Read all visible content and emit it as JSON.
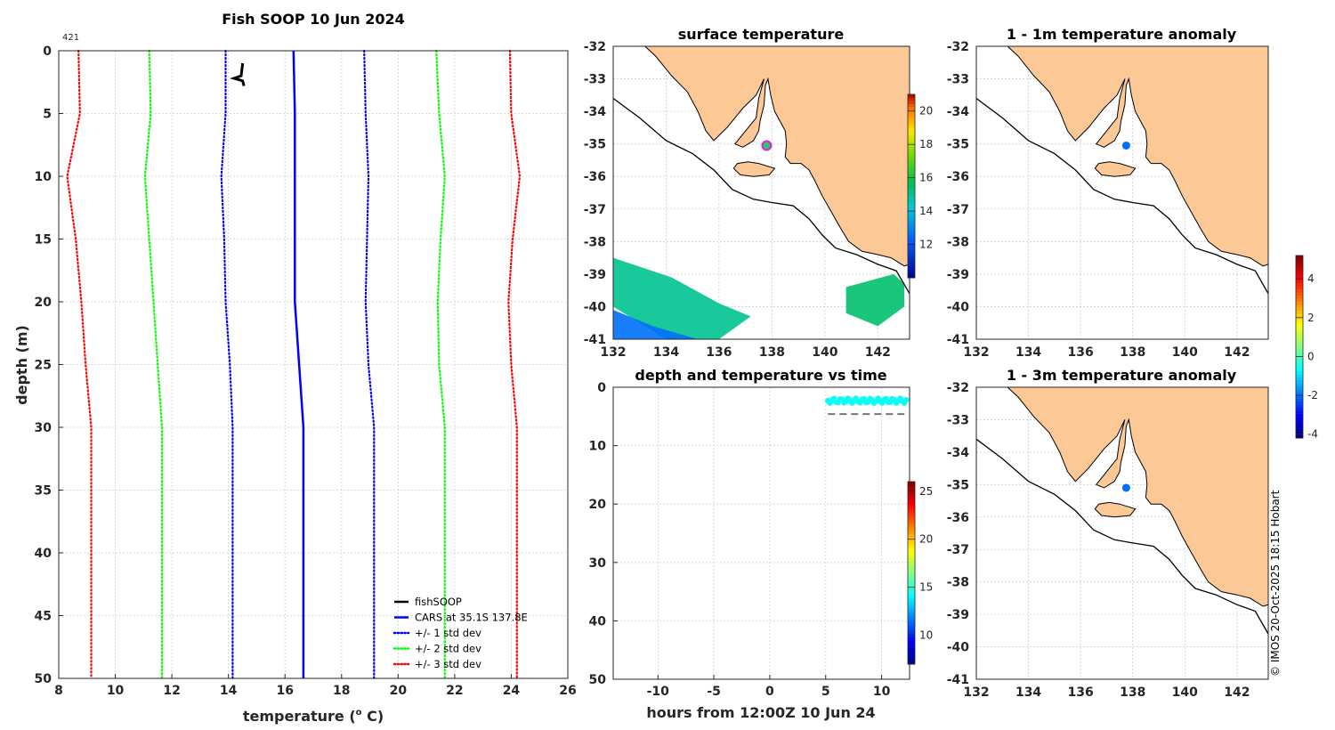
{
  "figure_title": "Fish SOOP 10 Jun 2024",
  "copyright": "© IMOS 20-Oct-2025 18:15 Hobart",
  "chart_data": [
    {
      "id": "profile",
      "type": "line",
      "title": "Fish SOOP 10 Jun 2024",
      "xlabel": "temperature (° C)",
      "xlabel_main": "temperature (",
      "xlabel_sup": "o",
      "xlabel_end": " C)",
      "ylabel": "depth (m)",
      "xlim": [
        8,
        26
      ],
      "ylim": [
        50,
        0
      ],
      "xticks": [
        8,
        10,
        12,
        14,
        16,
        18,
        20,
        22,
        24,
        26
      ],
      "yticks": [
        0,
        5,
        10,
        15,
        20,
        25,
        30,
        35,
        40,
        45,
        50
      ],
      "annotation": "421",
      "grid": true,
      "legend_position": "bottom-right",
      "series": [
        {
          "name": "fishSOOP",
          "style": "solid",
          "color": "#000000",
          "points": [
            [
              14.5,
              1.0
            ],
            [
              14.45,
              2.0
            ],
            [
              14.2,
              2.2
            ],
            [
              14.5,
              2.4
            ],
            [
              14.55,
              2.8
            ]
          ]
        },
        {
          "name": "CARS at 35.1S 137.8E",
          "style": "solid",
          "color": "#0000ff",
          "points": [
            [
              16.3,
              0
            ],
            [
              16.35,
              5
            ],
            [
              16.35,
              10
            ],
            [
              16.35,
              15
            ],
            [
              16.35,
              20
            ],
            [
              16.5,
              25
            ],
            [
              16.65,
              30
            ],
            [
              16.65,
              35
            ],
            [
              16.65,
              40
            ],
            [
              16.65,
              45
            ],
            [
              16.65,
              50
            ]
          ]
        },
        {
          "name": "+/- 1 std dev",
          "style": "dotted",
          "color": "#0000ff",
          "points": [
            [
              13.9,
              0
            ],
            [
              13.9,
              5
            ],
            [
              13.75,
              10
            ],
            [
              13.85,
              15
            ],
            [
              13.9,
              20
            ],
            [
              14.05,
              25
            ],
            [
              14.15,
              30
            ],
            [
              14.15,
              35
            ],
            [
              14.15,
              40
            ],
            [
              14.15,
              45
            ],
            [
              14.15,
              50
            ]
          ]
        },
        {
          "name": "+/- 1 std dev upper",
          "legend": false,
          "style": "dotted",
          "color": "#0000ff",
          "points": [
            [
              18.8,
              0
            ],
            [
              18.85,
              5
            ],
            [
              18.95,
              10
            ],
            [
              18.9,
              15
            ],
            [
              18.85,
              20
            ],
            [
              18.95,
              25
            ],
            [
              19.15,
              30
            ],
            [
              19.15,
              35
            ],
            [
              19.15,
              40
            ],
            [
              19.15,
              45
            ],
            [
              19.15,
              50
            ]
          ]
        },
        {
          "name": "+/- 2 std dev",
          "style": "dotted",
          "color": "#00ff00",
          "points": [
            [
              11.2,
              0
            ],
            [
              11.25,
              5
            ],
            [
              11.05,
              10
            ],
            [
              11.2,
              15
            ],
            [
              11.35,
              20
            ],
            [
              11.5,
              25
            ],
            [
              11.65,
              30
            ],
            [
              11.65,
              35
            ],
            [
              11.65,
              40
            ],
            [
              11.65,
              45
            ],
            [
              11.65,
              50
            ]
          ]
        },
        {
          "name": "+/- 2 std dev upper",
          "legend": false,
          "style": "dotted",
          "color": "#00ff00",
          "points": [
            [
              21.35,
              0
            ],
            [
              21.45,
              5
            ],
            [
              21.65,
              10
            ],
            [
              21.5,
              15
            ],
            [
              21.4,
              20
            ],
            [
              21.45,
              25
            ],
            [
              21.65,
              30
            ],
            [
              21.65,
              35
            ],
            [
              21.65,
              40
            ],
            [
              21.65,
              45
            ],
            [
              21.65,
              50
            ]
          ]
        },
        {
          "name": "+/- 3 std dev",
          "style": "dotted",
          "color": "#ff0000",
          "points": [
            [
              8.7,
              0
            ],
            [
              8.75,
              5
            ],
            [
              8.3,
              10
            ],
            [
              8.6,
              15
            ],
            [
              8.8,
              20
            ],
            [
              8.95,
              25
            ],
            [
              9.15,
              30
            ],
            [
              9.15,
              35
            ],
            [
              9.15,
              40
            ],
            [
              9.15,
              45
            ],
            [
              9.15,
              50
            ]
          ]
        },
        {
          "name": "+/- 3 std dev upper",
          "legend": false,
          "style": "dotted",
          "color": "#ff0000",
          "points": [
            [
              23.95,
              0
            ],
            [
              24.0,
              5
            ],
            [
              24.3,
              10
            ],
            [
              24.05,
              15
            ],
            [
              23.9,
              20
            ],
            [
              24.0,
              25
            ],
            [
              24.2,
              30
            ],
            [
              24.2,
              35
            ],
            [
              24.2,
              40
            ],
            [
              24.2,
              45
            ],
            [
              24.2,
              50
            ]
          ]
        }
      ]
    },
    {
      "id": "surface",
      "type": "heatmap",
      "title": "surface temperature",
      "xlim": [
        132,
        143.2
      ],
      "ylim": [
        -41,
        -32
      ],
      "xticks": [
        132,
        134,
        136,
        138,
        140,
        142
      ],
      "yticks": [
        -32,
        -33,
        -34,
        -35,
        -36,
        -37,
        -38,
        -39,
        -40,
        -41
      ],
      "station": {
        "lon": 137.8,
        "lat": -35.05,
        "color": "#e020e0"
      },
      "colorbar": {
        "min": 10,
        "max": 21,
        "ticks": [
          12,
          14,
          16,
          18,
          20
        ]
      },
      "sst_regions": [
        {
          "lon": [
            132,
            134.2,
            136.0,
            137.2,
            136.0,
            134.0,
            132.0
          ],
          "lat": [
            -38.5,
            -39.1,
            -39.9,
            -40.3,
            -41.0,
            -41.0,
            -40.0
          ],
          "temp": 15.0
        },
        {
          "lon": [
            132,
            133.5,
            135.2,
            134.0,
            132.0
          ],
          "lat": [
            -40.1,
            -40.6,
            -41.0,
            -41.0,
            -41.0
          ],
          "temp": 12.6
        },
        {
          "lon": [
            140.8,
            142.6,
            143.0,
            143.0,
            142.0,
            140.8
          ],
          "lat": [
            -39.4,
            -39.0,
            -39.3,
            -40.0,
            -40.6,
            -40.2
          ],
          "temp": 15.4
        }
      ]
    },
    {
      "id": "timeseries",
      "type": "scatter",
      "title": "depth and temperature vs time",
      "xlabel": "hours from 12:00Z 10 Jun 24",
      "xlim": [
        -14,
        12.5
      ],
      "ylim": [
        50,
        0
      ],
      "xticks": [
        -10,
        -5,
        0,
        5,
        10
      ],
      "yticks": [
        0,
        10,
        20,
        30,
        40,
        50
      ],
      "reference_depth": 4.6,
      "colorbar": {
        "min": 7,
        "max": 26,
        "ticks": [
          10,
          15,
          20,
          25
        ]
      },
      "observations": {
        "hours_start": 5.2,
        "hours_end": 12.2,
        "depth_min": 1.9,
        "depth_max": 2.7,
        "temperature": 14.3
      }
    },
    {
      "id": "anom1",
      "type": "scatter",
      "title": "1 - 1m temperature anomaly",
      "xlim": [
        132,
        143.2
      ],
      "ylim": [
        -41,
        -32
      ],
      "xticks": [
        132,
        134,
        136,
        138,
        140,
        142
      ],
      "yticks": [
        -32,
        -33,
        -34,
        -35,
        -36,
        -37,
        -38,
        -39,
        -40,
        -41
      ],
      "point": {
        "lon": 137.75,
        "lat": -35.05,
        "anomaly": -2.0
      }
    },
    {
      "id": "anom3",
      "type": "scatter",
      "title": "1 - 3m temperature anomaly",
      "xlim": [
        132,
        143.2
      ],
      "ylim": [
        -41,
        -32
      ],
      "xticks": [
        132,
        134,
        136,
        138,
        140,
        142
      ],
      "yticks": [
        -32,
        -33,
        -34,
        -35,
        -36,
        -37,
        -38,
        -39,
        -40,
        -41
      ],
      "point": {
        "lon": 137.75,
        "lat": -35.1,
        "anomaly": -2.0
      },
      "colorbar": {
        "min": -4.2,
        "max": 5.2,
        "ticks": [
          -4,
          -2,
          0,
          2,
          4
        ]
      }
    }
  ],
  "map_geometry": {
    "land_color": "#fbc896",
    "coast": [
      [
        132.0,
        -32.0
      ],
      [
        143.2,
        -32.0
      ],
      [
        143.2,
        -38.7
      ],
      [
        143.0,
        -38.75
      ],
      [
        142.5,
        -38.5
      ],
      [
        142.0,
        -38.4
      ],
      [
        141.4,
        -38.3
      ],
      [
        140.9,
        -38.0
      ],
      [
        140.6,
        -37.6
      ],
      [
        140.25,
        -37.1
      ],
      [
        139.9,
        -36.6
      ],
      [
        139.6,
        -36.1
      ],
      [
        139.4,
        -35.8
      ],
      [
        139.1,
        -35.6
      ],
      [
        138.7,
        -35.6
      ],
      [
        138.5,
        -35.4
      ],
      [
        138.55,
        -35.0
      ],
      [
        138.5,
        -34.6
      ],
      [
        138.1,
        -34.0
      ],
      [
        137.95,
        -33.5
      ],
      [
        137.85,
        -33.0
      ],
      [
        137.75,
        -33.2
      ],
      [
        137.7,
        -33.8
      ],
      [
        137.55,
        -34.3
      ],
      [
        137.5,
        -34.6
      ],
      [
        137.3,
        -34.9
      ],
      [
        136.9,
        -35.1
      ],
      [
        136.6,
        -35.0
      ],
      [
        136.9,
        -34.7
      ],
      [
        137.4,
        -34.2
      ],
      [
        137.5,
        -33.6
      ],
      [
        137.7,
        -33.0
      ],
      [
        137.4,
        -33.5
      ],
      [
        136.9,
        -33.9
      ],
      [
        136.3,
        -34.5
      ],
      [
        135.8,
        -34.9
      ],
      [
        135.5,
        -34.6
      ],
      [
        135.2,
        -34.0
      ],
      [
        134.8,
        -33.4
      ],
      [
        134.2,
        -32.9
      ],
      [
        133.6,
        -32.3
      ],
      [
        133.2,
        -32.0
      ]
    ],
    "island": [
      [
        136.55,
        -35.75
      ],
      [
        136.7,
        -35.6
      ],
      [
        137.1,
        -35.55
      ],
      [
        137.5,
        -35.6
      ],
      [
        138.1,
        -35.75
      ],
      [
        137.9,
        -35.95
      ],
      [
        137.3,
        -36.0
      ],
      [
        136.8,
        -35.95
      ]
    ],
    "shelf": [
      [
        132.0,
        -33.6
      ],
      [
        133.0,
        -34.2
      ],
      [
        134.0,
        -34.9
      ],
      [
        135.0,
        -35.3
      ],
      [
        135.8,
        -35.8
      ],
      [
        136.5,
        -36.4
      ],
      [
        137.3,
        -36.7
      ],
      [
        138.0,
        -36.8
      ],
      [
        138.8,
        -36.9
      ],
      [
        139.4,
        -37.3
      ],
      [
        139.9,
        -37.8
      ],
      [
        140.4,
        -38.2
      ],
      [
        141.2,
        -38.4
      ],
      [
        142.0,
        -38.7
      ],
      [
        142.7,
        -38.9
      ],
      [
        143.2,
        -39.6
      ]
    ]
  }
}
